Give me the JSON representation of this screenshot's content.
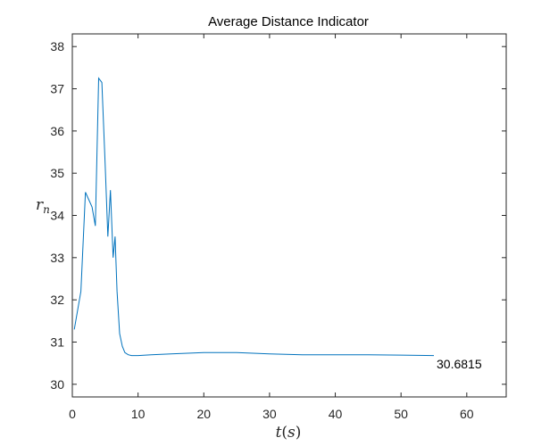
{
  "chart_data": {
    "type": "line",
    "title": "Average Distance Indicator",
    "xlabel": "t(s)",
    "ylabel": "r_n",
    "xlim": [
      0,
      66
    ],
    "ylim": [
      29.7,
      38.3
    ],
    "xticks": [
      0,
      10,
      20,
      30,
      40,
      50,
      60
    ],
    "yticks": [
      30,
      31,
      32,
      33,
      34,
      35,
      36,
      37,
      38
    ],
    "grid": false,
    "line_color": "#0072BD",
    "series": [
      {
        "x": [
          0.3,
          1.3,
          2.0,
          3.0,
          3.5,
          4.0,
          4.5,
          5.0,
          5.4,
          5.8,
          6.2,
          6.5,
          6.8,
          7.2,
          7.6,
          8.0,
          8.5,
          9.0,
          10,
          12,
          15,
          20,
          25,
          30,
          35,
          40,
          45,
          50,
          55
        ],
        "values": [
          31.3,
          32.2,
          34.55,
          34.2,
          33.75,
          37.25,
          37.15,
          35.2,
          33.5,
          34.6,
          33.0,
          33.5,
          32.2,
          31.2,
          30.9,
          30.75,
          30.7,
          30.68,
          30.68,
          30.7,
          30.72,
          30.75,
          30.75,
          30.72,
          30.7,
          30.7,
          30.7,
          30.69,
          30.68
        ]
      }
    ],
    "annotation": {
      "text": "30.6815",
      "x": 55,
      "y": 30.6815
    }
  }
}
